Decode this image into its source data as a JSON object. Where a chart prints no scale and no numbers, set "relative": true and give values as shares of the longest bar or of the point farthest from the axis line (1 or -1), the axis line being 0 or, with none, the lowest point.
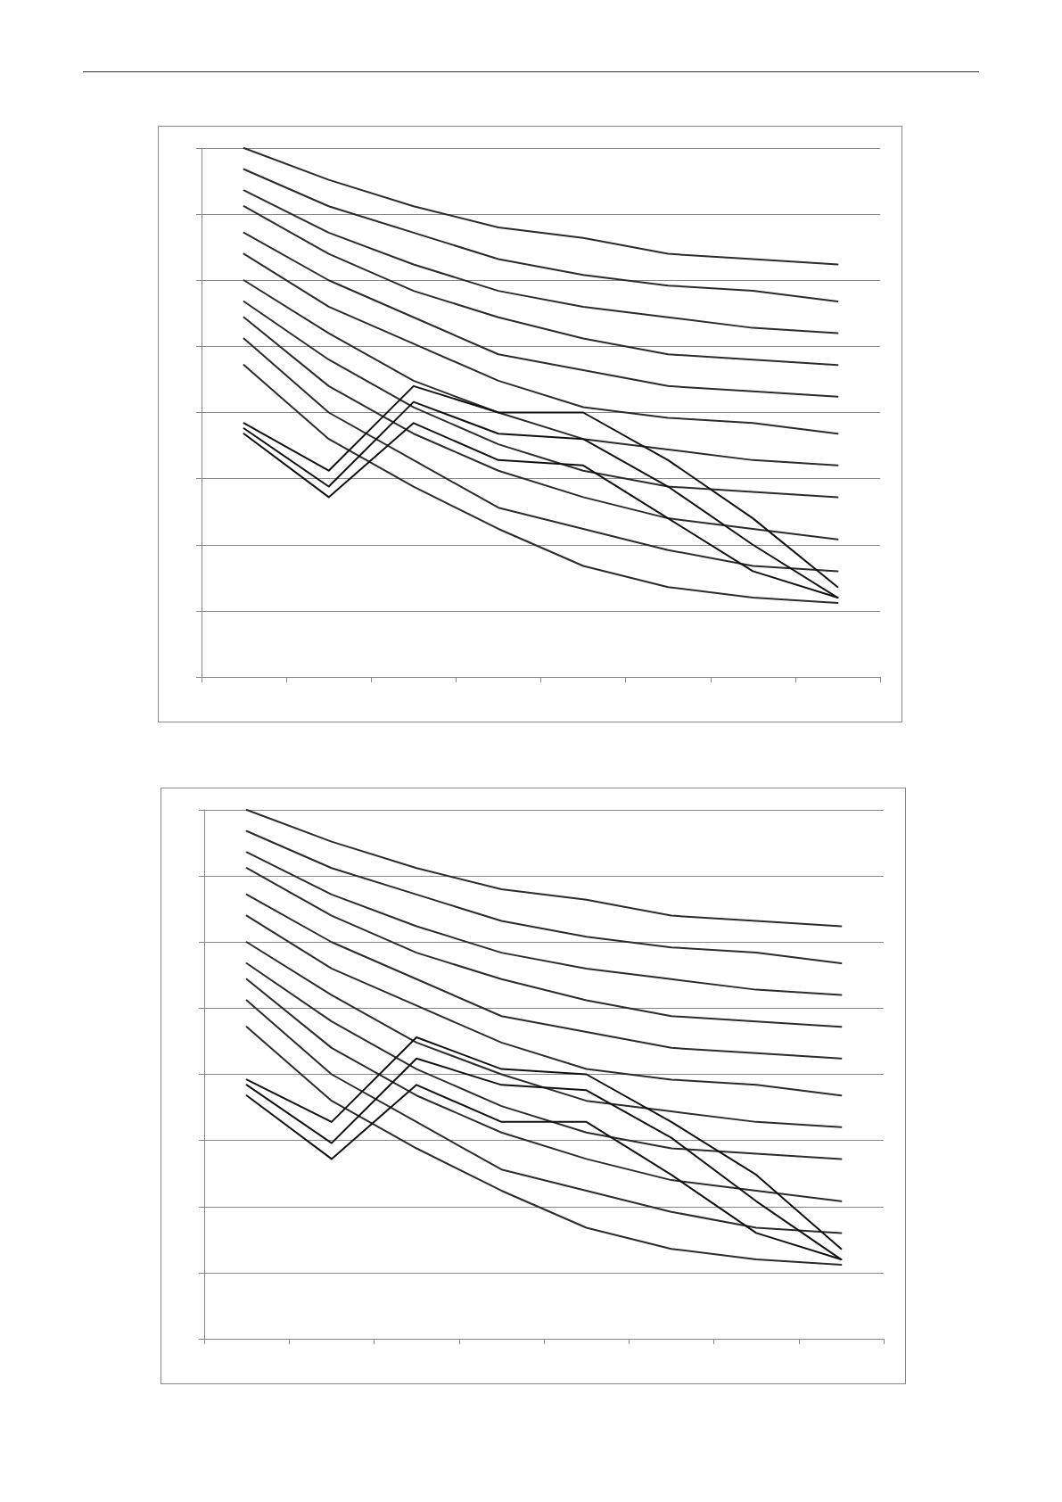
{
  "chart_data": [
    {
      "type": "line",
      "relative": true,
      "categories": [
        null,
        null,
        null,
        null,
        null,
        null,
        null,
        null
      ],
      "grid": "y",
      "marker": "none",
      "line_style": "solid",
      "series": [
        {
          "color": "#2b2b2b",
          "values": [
            1.0,
            0.94,
            0.89,
            0.85,
            0.83,
            0.8,
            0.79,
            0.78
          ]
        },
        {
          "color": "#2b2b2b",
          "values": [
            0.96,
            0.89,
            0.84,
            0.79,
            0.76,
            0.74,
            0.73,
            0.71
          ]
        },
        {
          "color": "#2b2b2b",
          "values": [
            0.92,
            0.84,
            0.78,
            0.73,
            0.7,
            0.68,
            0.66,
            0.65
          ]
        },
        {
          "color": "#2b2b2b",
          "values": [
            0.89,
            0.8,
            0.73,
            0.68,
            0.64,
            0.61,
            0.6,
            0.59
          ]
        },
        {
          "color": "#2b2b2b",
          "values": [
            0.84,
            0.75,
            0.68,
            0.61,
            0.58,
            0.55,
            0.54,
            0.53
          ]
        },
        {
          "color": "#2b2b2b",
          "values": [
            0.8,
            0.7,
            0.63,
            0.56,
            0.51,
            0.49,
            0.48,
            0.46
          ]
        },
        {
          "color": "#2b2b2b",
          "values": [
            0.75,
            0.65,
            0.56,
            0.5,
            0.45,
            0.43,
            0.41,
            0.4
          ]
        },
        {
          "color": "#2b2b2b",
          "values": [
            0.71,
            0.6,
            0.51,
            0.44,
            0.39,
            0.36,
            0.35,
            0.34
          ]
        },
        {
          "color": "#2b2b2b",
          "values": [
            0.68,
            0.55,
            0.46,
            0.39,
            0.34,
            0.3,
            0.28,
            0.26
          ]
        },
        {
          "color": "#2b2b2b",
          "values": [
            0.64,
            0.5,
            0.41,
            0.32,
            0.28,
            0.24,
            0.21,
            0.2
          ]
        },
        {
          "color": "#2b2b2b",
          "values": [
            0.59,
            0.45,
            0.36,
            0.28,
            0.21,
            0.17,
            0.15,
            0.14
          ]
        },
        {
          "color": "#111111",
          "values": [
            0.48,
            0.39,
            0.55,
            0.5,
            0.5,
            0.41,
            0.3,
            0.17
          ]
        },
        {
          "color": "#111111",
          "values": [
            0.47,
            0.36,
            0.52,
            0.46,
            0.45,
            0.36,
            0.25,
            0.15
          ]
        },
        {
          "color": "#111111",
          "values": [
            0.46,
            0.34,
            0.48,
            0.41,
            0.4,
            0.3,
            0.2,
            0.15
          ]
        }
      ]
    },
    {
      "type": "line",
      "relative": true,
      "categories": [
        null,
        null,
        null,
        null,
        null,
        null,
        null,
        null
      ],
      "grid": "y",
      "marker": "none",
      "line_style": "solid",
      "series": [
        {
          "color": "#2b2b2b",
          "values": [
            1.0,
            0.94,
            0.89,
            0.85,
            0.83,
            0.8,
            0.79,
            0.78
          ]
        },
        {
          "color": "#2b2b2b",
          "values": [
            0.96,
            0.89,
            0.84,
            0.79,
            0.76,
            0.74,
            0.73,
            0.71
          ]
        },
        {
          "color": "#2b2b2b",
          "values": [
            0.92,
            0.84,
            0.78,
            0.73,
            0.7,
            0.68,
            0.66,
            0.65
          ]
        },
        {
          "color": "#2b2b2b",
          "values": [
            0.89,
            0.8,
            0.73,
            0.68,
            0.64,
            0.61,
            0.6,
            0.59
          ]
        },
        {
          "color": "#2b2b2b",
          "values": [
            0.84,
            0.75,
            0.68,
            0.61,
            0.58,
            0.55,
            0.54,
            0.53
          ]
        },
        {
          "color": "#2b2b2b",
          "values": [
            0.8,
            0.7,
            0.63,
            0.56,
            0.51,
            0.49,
            0.48,
            0.46
          ]
        },
        {
          "color": "#2b2b2b",
          "values": [
            0.75,
            0.65,
            0.56,
            0.5,
            0.45,
            0.43,
            0.41,
            0.4
          ]
        },
        {
          "color": "#2b2b2b",
          "values": [
            0.71,
            0.6,
            0.51,
            0.44,
            0.39,
            0.36,
            0.35,
            0.34
          ]
        },
        {
          "color": "#2b2b2b",
          "values": [
            0.68,
            0.55,
            0.46,
            0.39,
            0.34,
            0.3,
            0.28,
            0.26
          ]
        },
        {
          "color": "#2b2b2b",
          "values": [
            0.64,
            0.5,
            0.41,
            0.32,
            0.28,
            0.24,
            0.21,
            0.2
          ]
        },
        {
          "color": "#2b2b2b",
          "values": [
            0.59,
            0.45,
            0.36,
            0.28,
            0.21,
            0.17,
            0.15,
            0.14
          ]
        },
        {
          "color": "#111111",
          "values": [
            0.49,
            0.41,
            0.57,
            0.51,
            0.5,
            0.41,
            0.31,
            0.17
          ]
        },
        {
          "color": "#111111",
          "values": [
            0.48,
            0.37,
            0.53,
            0.48,
            0.47,
            0.38,
            0.26,
            0.15
          ]
        },
        {
          "color": "#111111",
          "values": [
            0.46,
            0.34,
            0.48,
            0.41,
            0.41,
            0.31,
            0.2,
            0.15
          ]
        }
      ]
    }
  ]
}
